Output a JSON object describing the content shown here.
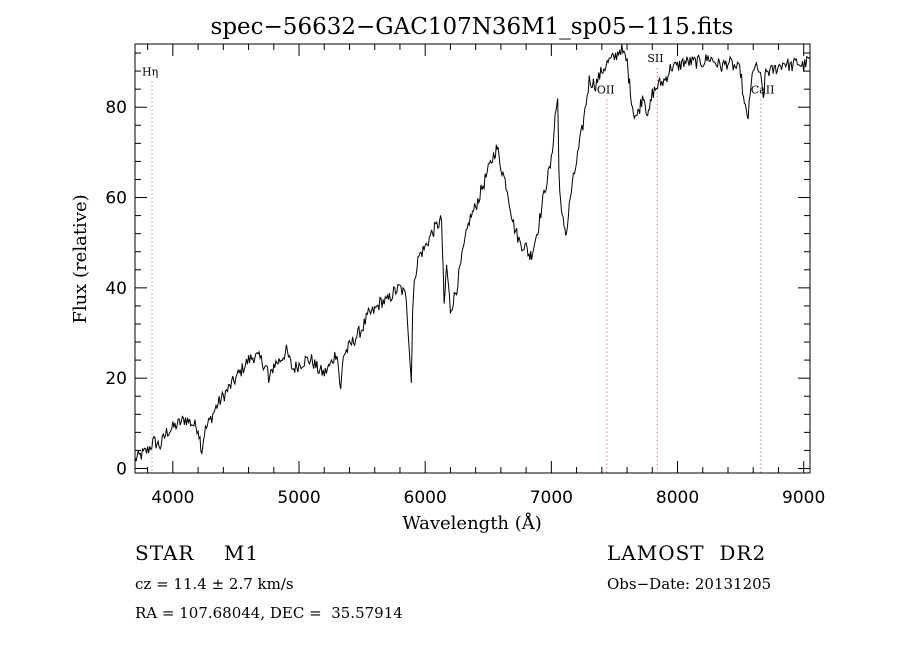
{
  "chart_data": {
    "type": "line",
    "title": "spec−56632−GAC107N36M1_sp05−115.fits",
    "xlabel": "Wavelength (Å)",
    "ylabel": "Flux (relative)",
    "xlim": [
      3700,
      9050
    ],
    "ylim": [
      -1,
      94
    ],
    "x_ticks": [
      4000,
      5000,
      6000,
      7000,
      8000,
      9000
    ],
    "y_ticks": [
      0,
      20,
      40,
      60,
      80
    ],
    "grid": false,
    "series": [
      {
        "name": "flux",
        "x": [
          3700,
          3750,
          3800,
          3850,
          3900,
          3950,
          4000,
          4050,
          4100,
          4150,
          4200,
          4230,
          4250,
          4300,
          4350,
          4400,
          4450,
          4500,
          4550,
          4600,
          4650,
          4700,
          4750,
          4760,
          4800,
          4850,
          4900,
          4950,
          5000,
          5050,
          5100,
          5150,
          5200,
          5250,
          5300,
          5330,
          5350,
          5400,
          5450,
          5500,
          5550,
          5600,
          5650,
          5700,
          5750,
          5800,
          5850,
          5880,
          5890,
          5900,
          5920,
          5950,
          6000,
          6050,
          6100,
          6130,
          6150,
          6170,
          6200,
          6230,
          6250,
          6300,
          6350,
          6400,
          6450,
          6500,
          6550,
          6570,
          6600,
          6650,
          6700,
          6750,
          6800,
          6830,
          6850,
          6900,
          6950,
          7000,
          7030,
          7050,
          7060,
          7080,
          7100,
          7120,
          7150,
          7200,
          7250,
          7300,
          7350,
          7400,
          7450,
          7500,
          7550,
          7600,
          7620,
          7650,
          7680,
          7700,
          7730,
          7750,
          7770,
          7800,
          7850,
          7900,
          7950,
          8000,
          8050,
          8100,
          8150,
          8200,
          8250,
          8300,
          8350,
          8400,
          8450,
          8500,
          8530,
          8560,
          8600,
          8650,
          8680,
          8700,
          8750,
          8800,
          8850,
          8900,
          8950,
          9000,
          9050
        ],
        "y": [
          2,
          3,
          4,
          6,
          5,
          8,
          9,
          10,
          11,
          10,
          9,
          4,
          8,
          11,
          14,
          16,
          18,
          20,
          22,
          24,
          25,
          24,
          22,
          19,
          23,
          24,
          26,
          22,
          23,
          24,
          24,
          22,
          21,
          23,
          26,
          17,
          25,
          27,
          29,
          31,
          34,
          35,
          37,
          37,
          39,
          40,
          38,
          24,
          19,
          35,
          43,
          47,
          49,
          52,
          54,
          55,
          36,
          45,
          35,
          38,
          40,
          48,
          55,
          58,
          62,
          66,
          70,
          71,
          67,
          62,
          54,
          50,
          49,
          47,
          48,
          54,
          62,
          68,
          78,
          82,
          66,
          56,
          54,
          52,
          60,
          68,
          76,
          86,
          85,
          88,
          90,
          91,
          93,
          90,
          85,
          79,
          78,
          80,
          83,
          80,
          78,
          83,
          85,
          86,
          89,
          89,
          90,
          90,
          90,
          90,
          91,
          90,
          89,
          90,
          89,
          88,
          80,
          78,
          89,
          88,
          82,
          88,
          88,
          89,
          90,
          89,
          90,
          89,
          91
        ],
        "noise": 1.5
      }
    ],
    "annotations": [
      {
        "label": "Hη",
        "x": 3835,
        "y_text": 87,
        "dotted": true
      },
      {
        "label": "OII",
        "x": 7440,
        "y_text": 83,
        "dotted": true
      },
      {
        "label": "SII",
        "x": 7840,
        "y_text": 90,
        "dotted": true
      },
      {
        "label": "CaII",
        "x": 8660,
        "y_text": 83,
        "dotted": true
      }
    ]
  },
  "info": {
    "object_class": "STAR    M1",
    "survey": "LAMOST  DR2",
    "redshift": "cz = 11.4 ± 2.7 km/s",
    "obs_date": "Obs−Date: 20131205",
    "coords": "RA = 107.68044, DEC =  35.57914"
  }
}
